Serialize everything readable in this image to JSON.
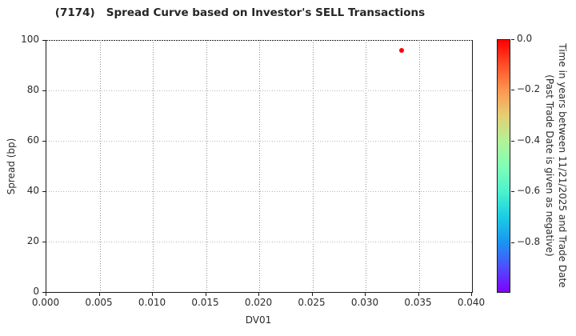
{
  "chart_data": {
    "type": "scatter",
    "title": "(7174)   Spread Curve based on Investor's SELL Transactions",
    "xlabel": "DV01",
    "ylabel": "Spread (bp)",
    "xlim": [
      0.0,
      0.04
    ],
    "ylim": [
      0,
      100
    ],
    "x_ticks": [
      "0.000",
      "0.005",
      "0.010",
      "0.015",
      "0.020",
      "0.025",
      "0.030",
      "0.035",
      "0.040"
    ],
    "y_ticks": [
      "0",
      "20",
      "40",
      "60",
      "80",
      "100"
    ],
    "grid": true,
    "grid_style": "dotted",
    "points": [
      {
        "dv01": 0.0334,
        "spread": 96,
        "time_years": 0.0,
        "color": "#ff0000"
      }
    ],
    "colorbar": {
      "label_line1": "Time in years between 11/21/2025 and Trade Date",
      "label_line2": "(Past Trade Date is given as negative)",
      "tick_labels": [
        "0.0",
        "−0.2",
        "−0.4",
        "−0.6",
        "−0.8"
      ],
      "value_range_top_to_bottom": [
        0.0,
        -1.0
      ],
      "colormap": "rainbow",
      "gradient_top_to_bottom": [
        "#ff0000",
        "#ff4f28",
        "#ff964f",
        "#e5ce74",
        "#b2f296",
        "#80ffb4",
        "#4df2ce",
        "#1acee3",
        "#1a96f2",
        "#4d4ffc",
        "#8000ff"
      ]
    }
  }
}
